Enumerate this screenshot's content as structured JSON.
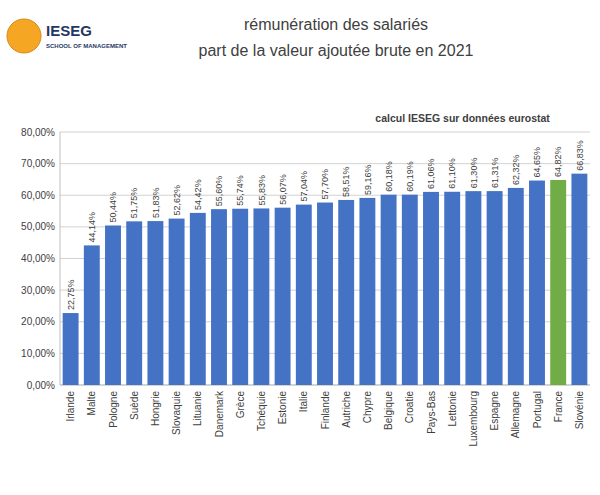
{
  "chart_data": {
    "type": "bar",
    "title": "rémunération des salariés",
    "subtitle": "part de la valeur ajoutée brute en 2021",
    "annotations": [
      "calcul IESEG sur données eurostat",
      "IESEG",
      "SCHOOL OF MANAGEMENT"
    ],
    "categories": [
      "Irlande",
      "Malte",
      "Pologne",
      "Suède",
      "Hongrie",
      "Slovaquie",
      "Lituanie",
      "Danemark",
      "Grèce",
      "Tchéquie",
      "Estonie",
      "Italie",
      "Finlande",
      "Autriche",
      "Chypre",
      "Belgique",
      "Croatie",
      "Pays-Bas",
      "Lettonie",
      "Luxembourg",
      "Espagne",
      "Allemagne",
      "Portugal",
      "France",
      "Slovénie"
    ],
    "values": [
      22.75,
      44.14,
      50.44,
      51.75,
      51.83,
      52.62,
      54.42,
      55.6,
      55.74,
      55.83,
      56.07,
      57.04,
      57.7,
      58.51,
      59.16,
      60.18,
      60.19,
      61.06,
      61.1,
      61.3,
      61.31,
      62.32,
      64.65,
      64.82,
      66.83
    ],
    "value_labels": [
      "22,75%",
      "44,14%",
      "50,44%",
      "51,75%",
      "51,83%",
      "52,62%",
      "54,42%",
      "55,60%",
      "55,74%",
      "55,83%",
      "56,07%",
      "57,04%",
      "57,70%",
      "58,51%",
      "59,16%",
      "60,18%",
      "60,19%",
      "61,06%",
      "61,10%",
      "61,30%",
      "61,31%",
      "62,32%",
      "64,65%",
      "64,82%",
      "66,83%"
    ],
    "colors": [
      "#4472C4",
      "#4472C4",
      "#4472C4",
      "#4472C4",
      "#4472C4",
      "#4472C4",
      "#4472C4",
      "#4472C4",
      "#4472C4",
      "#4472C4",
      "#4472C4",
      "#4472C4",
      "#4472C4",
      "#4472C4",
      "#4472C4",
      "#4472C4",
      "#4472C4",
      "#4472C4",
      "#4472C4",
      "#4472C4",
      "#4472C4",
      "#4472C4",
      "#4472C4",
      "#70AD47",
      "#4472C4"
    ],
    "ylim": [
      0,
      80
    ],
    "yticks": [
      {
        "value": 0,
        "label": "0,00%"
      },
      {
        "value": 10,
        "label": "10,00%"
      },
      {
        "value": 20,
        "label": "20,00%"
      },
      {
        "value": 30,
        "label": "30,00%"
      },
      {
        "value": 40,
        "label": "40,00%"
      },
      {
        "value": 50,
        "label": "50,00%"
      },
      {
        "value": 60,
        "label": "60,00%"
      },
      {
        "value": 70,
        "label": "70,00%"
      },
      {
        "value": 80,
        "label": "80,00%"
      }
    ],
    "grid": true,
    "data_labels": true
  }
}
